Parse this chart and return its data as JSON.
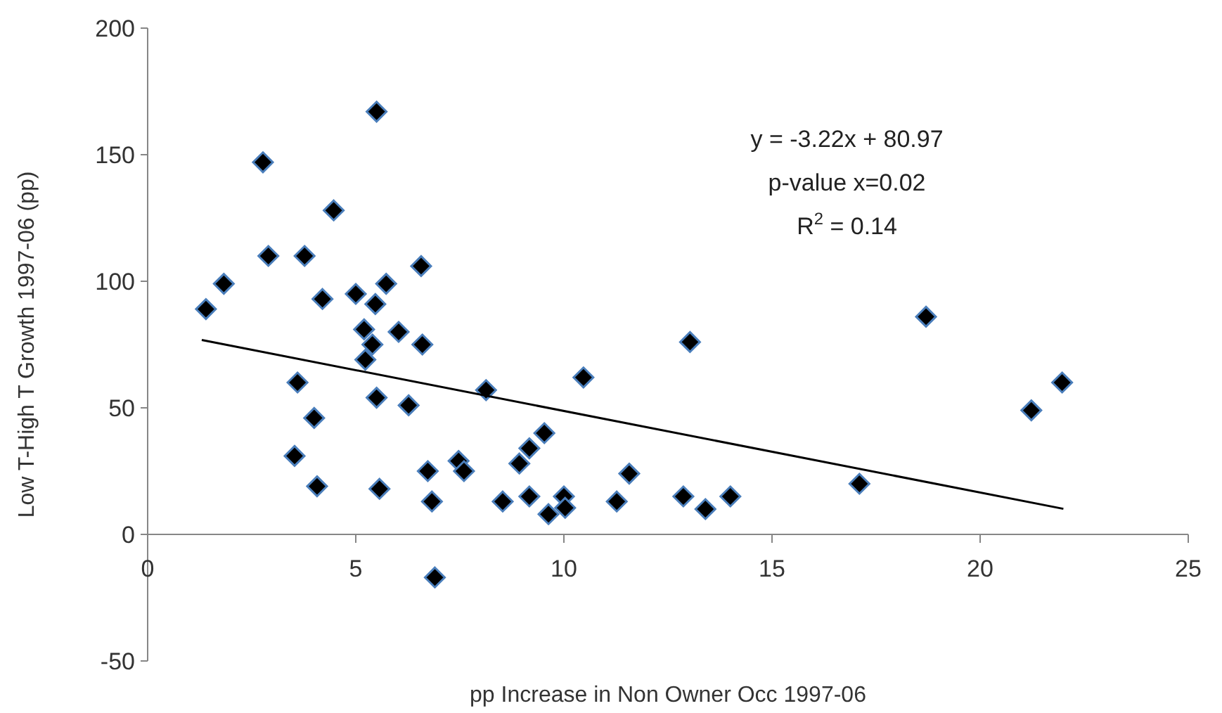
{
  "chart_data": {
    "type": "scatter",
    "xlabel": "pp Increase in Non Owner Occ 1997-06",
    "ylabel": "Low T-High T Growth  1997-06 (pp)",
    "xlim": [
      0,
      25
    ],
    "ylim": [
      -50,
      200
    ],
    "xticks": [
      0,
      5,
      10,
      15,
      20,
      25
    ],
    "yticks": [
      -50,
      0,
      50,
      100,
      150,
      200
    ],
    "grid": false,
    "annotations": [
      "y = -3.22x + 80.97",
      "p-value x=0.02",
      "R$^{2}$ = 0.14"
    ],
    "series": [
      {
        "marker": "diamond",
        "color": "#000000",
        "x": [
          1.4,
          1.83,
          2.77,
          2.9,
          3.77,
          4.47,
          5.5,
          4.2,
          5.0,
          5.47,
          5.73,
          6.57,
          5.2,
          6.03,
          6.6,
          5.4,
          5.23,
          3.6,
          5.5,
          6.27,
          8.13,
          4.0,
          3.53,
          4.07,
          5.57,
          6.73,
          6.83,
          7.47,
          7.6,
          10.47,
          13.03,
          9.53,
          9.17,
          8.93,
          8.53,
          9.17,
          9.63,
          10.0,
          10.03,
          11.27,
          11.57,
          12.87,
          13.4,
          14.0,
          6.9,
          17.1,
          18.7,
          21.23,
          21.97
        ],
        "values": [
          89,
          99,
          147,
          110,
          110,
          128,
          167,
          93,
          95,
          91,
          99,
          106,
          81,
          80,
          75,
          75,
          69,
          60,
          54,
          51,
          57,
          46,
          31,
          19,
          18,
          25,
          13,
          29,
          25,
          62,
          76,
          40,
          34,
          28,
          13,
          15,
          8,
          15,
          10.5,
          13,
          24,
          15,
          10,
          15,
          -17,
          20,
          86,
          49,
          60
        ]
      },
      {
        "type": "line",
        "marker": "none",
        "color": "#000000",
        "x": [
          1.3,
          22
        ],
        "values": [
          76.8,
          10.1
        ]
      }
    ]
  }
}
